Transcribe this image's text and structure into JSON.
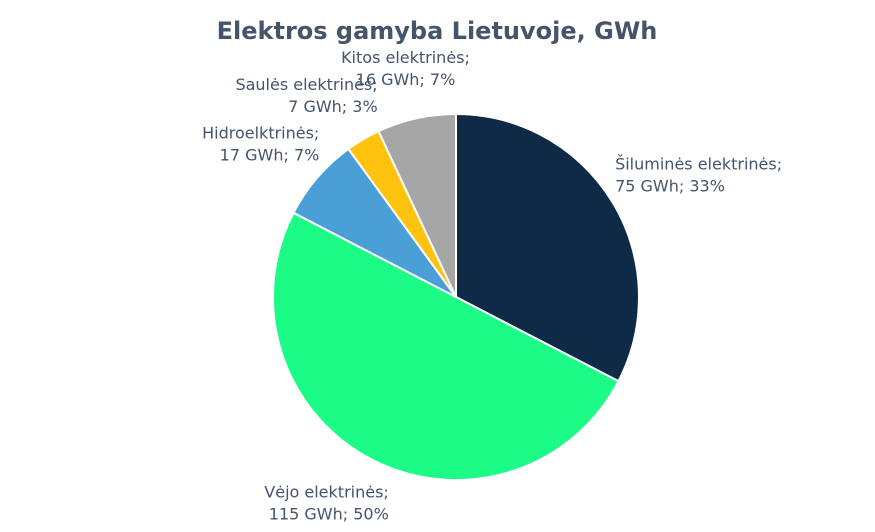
{
  "chart_data": {
    "type": "pie",
    "title": "Elektros gamyba Lietuvoje, GWh",
    "categories": [
      "Šiluminės elektrinės;",
      "Vėjo elektrinės;",
      "Hidroelktrinės;",
      "Saulės elektrinės;",
      "Kitos elektrinės;"
    ],
    "values": [
      75,
      115,
      17,
      7,
      16
    ],
    "value_labels": [
      "75 GWh; 33%",
      "115 GWh; 50%",
      "17 GWh; 7%",
      "7 GWh; 3%",
      "16 GWh; 7%"
    ],
    "colors": [
      "#0e2a47",
      "#1dfb87",
      "#4a9fd6",
      "#ffc20e",
      "#a6a6a6"
    ]
  }
}
